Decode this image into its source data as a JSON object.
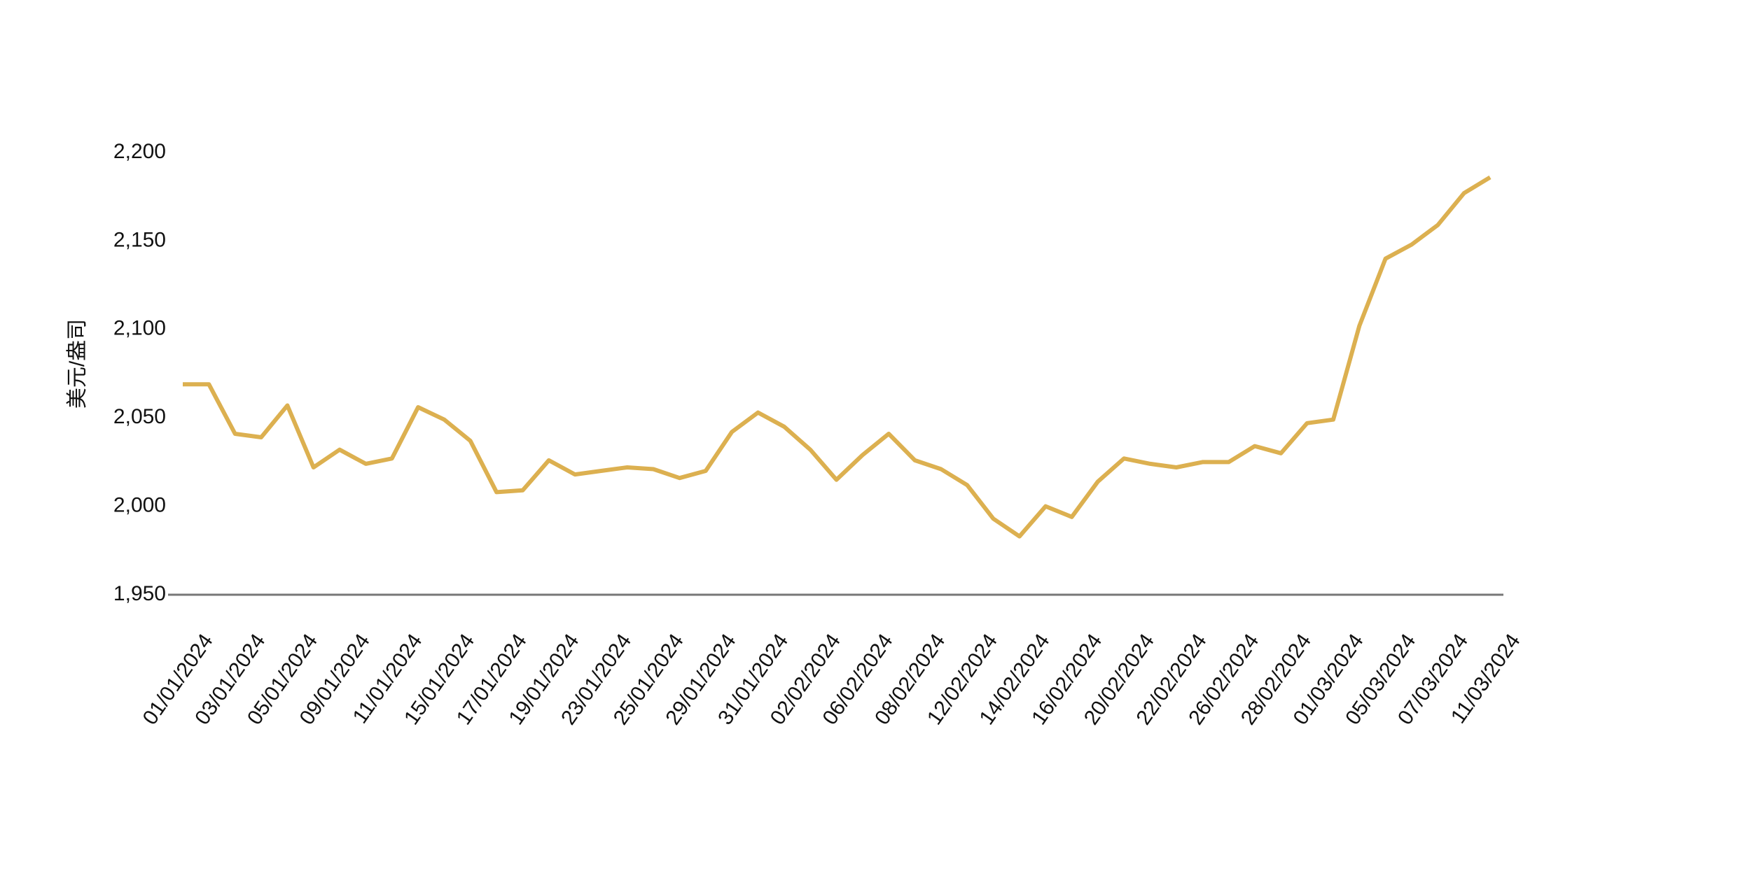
{
  "chart_data": {
    "type": "line",
    "y_axis_label": "美元/盎司",
    "categories": [
      "01/01/2024",
      null,
      "03/01/2024",
      null,
      "05/01/2024",
      null,
      "09/01/2024",
      null,
      "11/01/2024",
      null,
      "15/01/2024",
      null,
      "17/01/2024",
      null,
      "19/01/2024",
      null,
      "23/01/2024",
      null,
      "25/01/2024",
      null,
      "29/01/2024",
      null,
      "31/01/2024",
      null,
      "02/02/2024",
      null,
      "06/02/2024",
      null,
      "08/02/2024",
      null,
      "12/02/2024",
      null,
      "14/02/2024",
      null,
      "16/02/2024",
      null,
      "20/02/2024",
      null,
      "22/02/2024",
      null,
      "26/02/2024",
      null,
      "28/02/2024",
      null,
      "01/03/2024",
      null,
      "05/03/2024",
      null,
      "07/03/2024",
      null,
      "11/03/2024"
    ],
    "values": [
      2069,
      2069,
      2041,
      2039,
      2057,
      2022,
      2032,
      2024,
      2027,
      2056,
      2049,
      2037,
      2008,
      2009,
      2026,
      2018,
      2020,
      2022,
      2021,
      2016,
      2020,
      2042,
      2053,
      2045,
      2032,
      2015,
      2029,
      2041,
      2026,
      2021,
      2012,
      1993,
      1983,
      2000,
      1994,
      2014,
      2027,
      2024,
      2022,
      2025,
      2025,
      2034,
      2030,
      2047,
      2049,
      2102,
      2140,
      2148,
      2159,
      2177,
      2186
    ],
    "color": "#dcb050",
    "ylim": [
      1950,
      2200
    ],
    "yticks": [
      {
        "value": 1950,
        "label": "1,950"
      },
      {
        "value": 2000,
        "label": "2,000"
      },
      {
        "value": 2050,
        "label": "2,050"
      },
      {
        "value": 2100,
        "label": "2,100"
      },
      {
        "value": 2150,
        "label": "2,150"
      },
      {
        "value": 2200,
        "label": "2,200"
      }
    ],
    "grid": false
  }
}
